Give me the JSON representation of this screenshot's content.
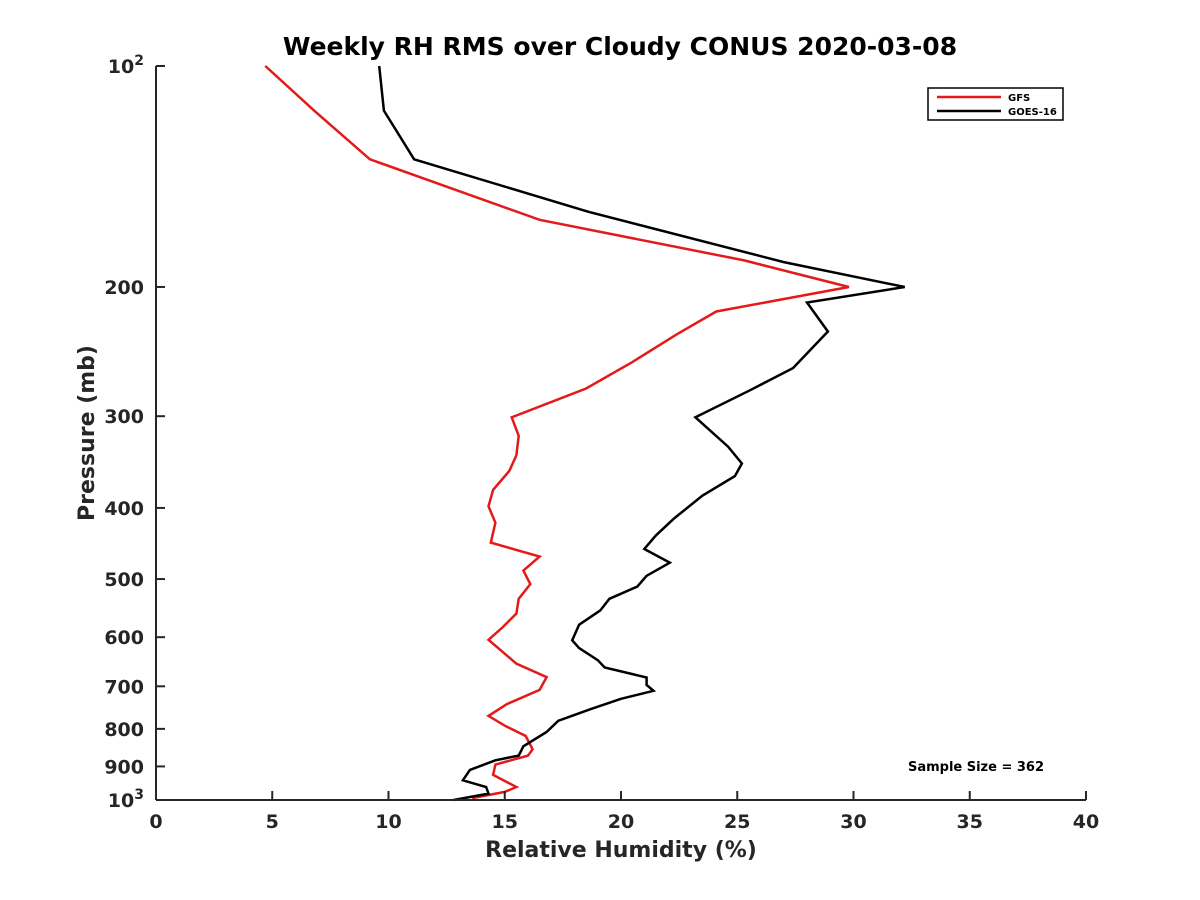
{
  "chart_data": {
    "type": "line",
    "title": "Weekly RH RMS over Cloudy CONUS 2020-03-08",
    "xlabel": "Relative Humidity (%)",
    "ylabel": "Pressure (mb)",
    "xlim": [
      0,
      40
    ],
    "ylim": [
      100,
      1000
    ],
    "y_scale": "log",
    "y_reversed": true,
    "grid": false,
    "legend_position": "top-right",
    "x_ticks": [
      {
        "value": 0,
        "label": "0"
      },
      {
        "value": 5,
        "label": "5"
      },
      {
        "value": 10,
        "label": "10"
      },
      {
        "value": 15,
        "label": "15"
      },
      {
        "value": 20,
        "label": "20"
      },
      {
        "value": 25,
        "label": "25"
      },
      {
        "value": 30,
        "label": "30"
      },
      {
        "value": 35,
        "label": "35"
      },
      {
        "value": 40,
        "label": "40"
      }
    ],
    "y_ticks": [
      {
        "value": 100,
        "base": "10",
        "exp": "2"
      },
      {
        "value": 200,
        "label": "200"
      },
      {
        "value": 300,
        "label": "300"
      },
      {
        "value": 400,
        "label": "400"
      },
      {
        "value": 500,
        "label": "500"
      },
      {
        "value": 600,
        "label": "600"
      },
      {
        "value": 700,
        "label": "700"
      },
      {
        "value": 800,
        "label": "800"
      },
      {
        "value": 900,
        "label": "900"
      },
      {
        "value": 1000,
        "base": "10",
        "exp": "3"
      }
    ],
    "series": [
      {
        "name": "GFS",
        "color": "#e41a1a",
        "points": [
          [
            4.7,
            100
          ],
          [
            6.8,
            115
          ],
          [
            9.2,
            134
          ],
          [
            16.5,
            162
          ],
          [
            25.3,
            184
          ],
          [
            29.8,
            200
          ],
          [
            24.1,
            216
          ],
          [
            22.4,
            232
          ],
          [
            20.5,
            253
          ],
          [
            18.5,
            275
          ],
          [
            15.3,
            301
          ],
          [
            15.6,
            319
          ],
          [
            15.5,
            339
          ],
          [
            15.2,
            356
          ],
          [
            14.5,
            378
          ],
          [
            14.3,
            398
          ],
          [
            14.6,
            419
          ],
          [
            14.4,
            446
          ],
          [
            16.5,
            466
          ],
          [
            15.8,
            487
          ],
          [
            16.1,
            508
          ],
          [
            15.6,
            532
          ],
          [
            15.5,
            557
          ],
          [
            14.9,
            582
          ],
          [
            14.3,
            605
          ],
          [
            14.8,
            624
          ],
          [
            15.5,
            652
          ],
          [
            16.8,
            680
          ],
          [
            16.5,
            708
          ],
          [
            15.1,
            740
          ],
          [
            14.3,
            768
          ],
          [
            15.0,
            792
          ],
          [
            15.9,
            818
          ],
          [
            16.2,
            853
          ],
          [
            16.0,
            870
          ],
          [
            14.6,
            895
          ],
          [
            14.5,
            924
          ],
          [
            15.0,
            942
          ],
          [
            15.5,
            960
          ],
          [
            15.0,
            975
          ],
          [
            13.6,
            994
          ]
        ]
      },
      {
        "name": "GOES-16",
        "color": "#000000",
        "points": [
          [
            9.6,
            100
          ],
          [
            9.8,
            115
          ],
          [
            11.1,
            134
          ],
          [
            18.6,
            158
          ],
          [
            27.0,
            185
          ],
          [
            32.2,
            200
          ],
          [
            28.0,
            210
          ],
          [
            28.9,
            230
          ],
          [
            27.4,
            258
          ],
          [
            25.5,
            277
          ],
          [
            23.2,
            301
          ],
          [
            24.6,
            330
          ],
          [
            25.2,
            348
          ],
          [
            24.9,
            362
          ],
          [
            23.5,
            385
          ],
          [
            22.3,
            413
          ],
          [
            21.5,
            436
          ],
          [
            21.0,
            455
          ],
          [
            22.1,
            475
          ],
          [
            21.1,
            495
          ],
          [
            20.7,
            512
          ],
          [
            19.5,
            532
          ],
          [
            19.1,
            552
          ],
          [
            18.2,
            577
          ],
          [
            17.9,
            606
          ],
          [
            18.2,
            621
          ],
          [
            19.0,
            645
          ],
          [
            19.3,
            660
          ],
          [
            21.1,
            681
          ],
          [
            21.1,
            697
          ],
          [
            21.4,
            710
          ],
          [
            20.0,
            728
          ],
          [
            18.7,
            752
          ],
          [
            17.3,
            780
          ],
          [
            16.8,
            808
          ],
          [
            15.8,
            845
          ],
          [
            15.6,
            870
          ],
          [
            14.6,
            883
          ],
          [
            13.5,
            910
          ],
          [
            13.2,
            940
          ],
          [
            14.2,
            960
          ],
          [
            14.3,
            980
          ],
          [
            12.8,
            1000
          ]
        ]
      }
    ],
    "annotations": [
      "Sample Size = 362"
    ]
  }
}
